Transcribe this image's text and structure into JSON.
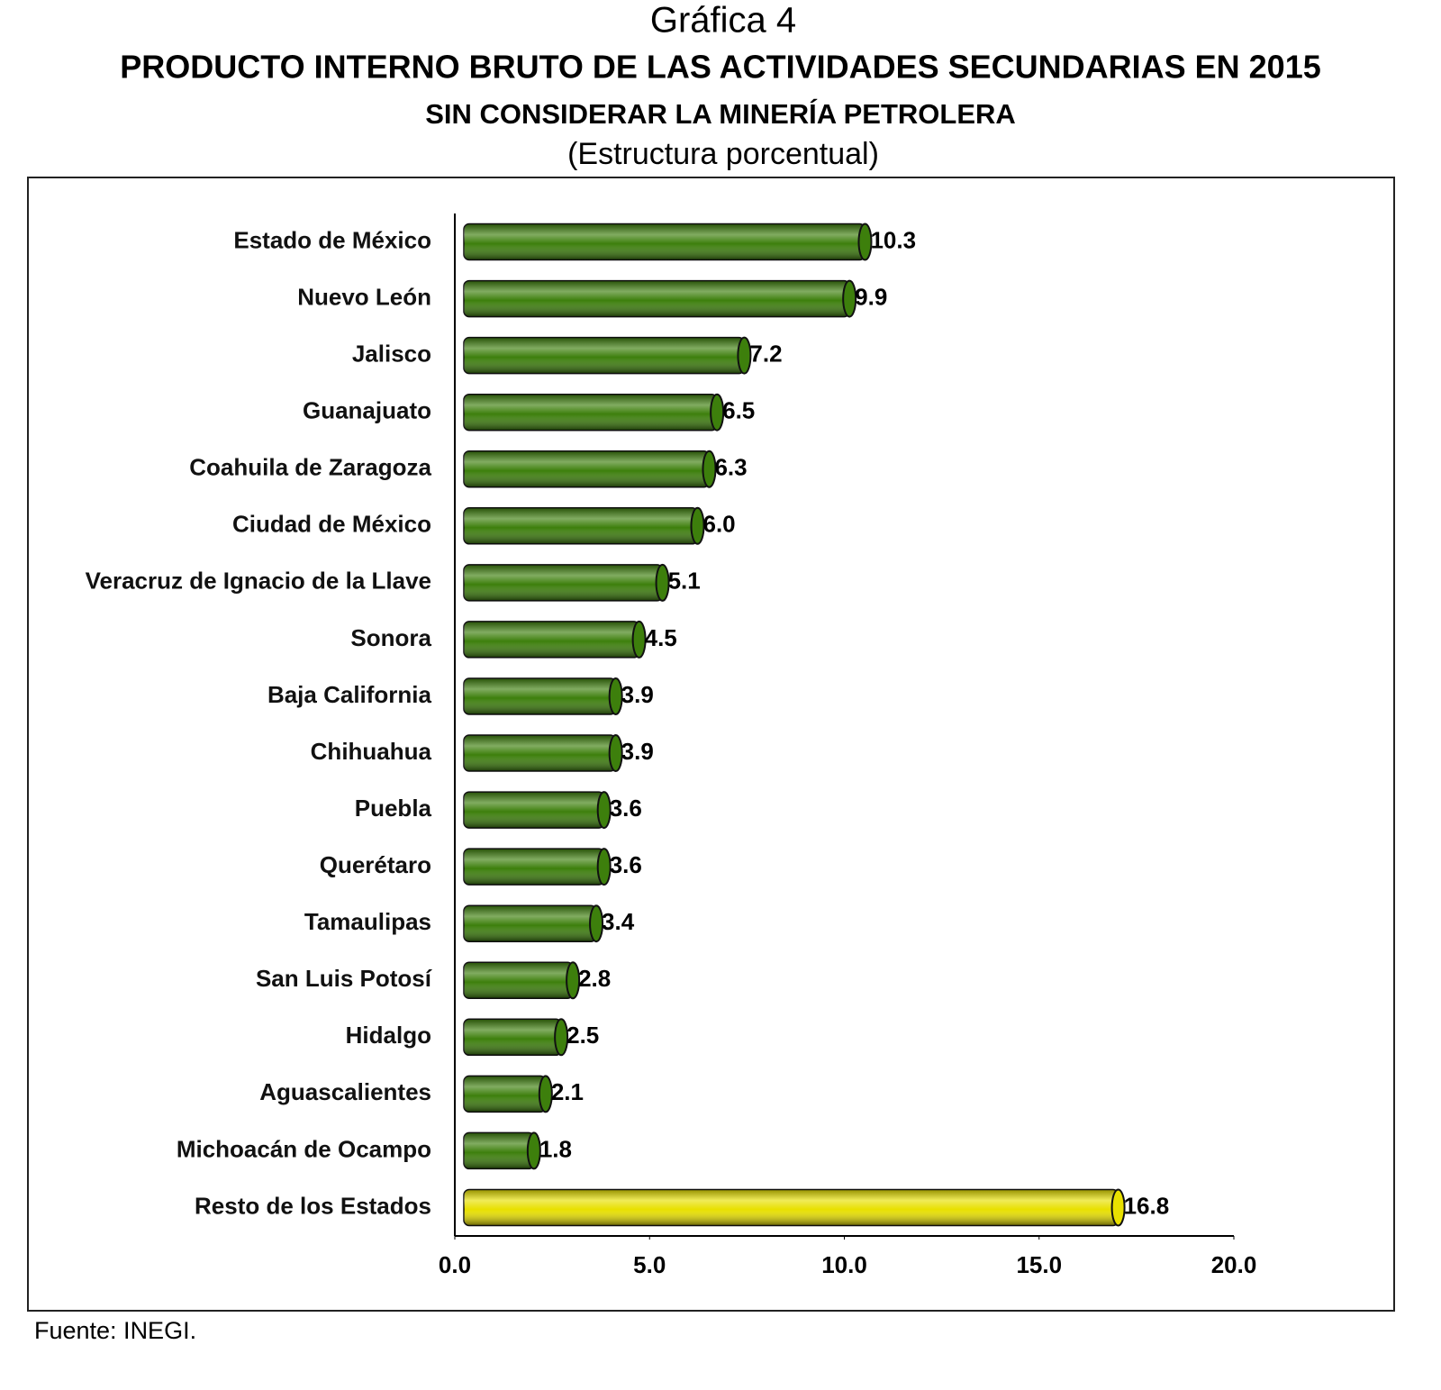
{
  "chart_data": {
    "type": "hbar",
    "title": "Gráfica 4",
    "subtitle": "PRODUCTO INTERNO BRUTO DE LAS ACTIVIDADES SECUNDARIAS EN 2015",
    "subtitle2": "SIN CONSIDERAR LA MINERÍA PETROLERA",
    "subtitle3": "(Estructura porcentual)",
    "source": "Fuente: INEGI.",
    "categories": [
      "Estado de México",
      "Nuevo León",
      "Jalisco",
      "Guanajuato",
      "Coahuila de Zaragoza",
      "Ciudad de México",
      "Veracruz de Ignacio de la Llave",
      "Sonora",
      "Baja California",
      "Chihuahua",
      "Puebla",
      "Querétaro",
      "Tamaulipas",
      "San Luis Potosí",
      "Hidalgo",
      "Aguascalientes",
      "Michoacán de Ocampo",
      "Resto de los Estados"
    ],
    "values": [
      10.3,
      9.9,
      7.2,
      6.5,
      6.3,
      6.0,
      5.1,
      4.5,
      3.9,
      3.9,
      3.6,
      3.6,
      3.4,
      2.8,
      2.5,
      2.1,
      1.8,
      16.8
    ],
    "value_labels": [
      "10.3",
      "9.9",
      "7.2",
      "6.5",
      "6.3",
      "6.0",
      "5.1",
      "4.5",
      "3.9",
      "3.9",
      "3.6",
      "3.6",
      "3.4",
      "2.8",
      "2.5",
      "2.1",
      "1.8",
      "16.8"
    ],
    "colors": [
      "#3d7f0c",
      "#3d7f0c",
      "#3d7f0c",
      "#3d7f0c",
      "#3d7f0c",
      "#3d7f0c",
      "#3d7f0c",
      "#3d7f0c",
      "#3d7f0c",
      "#3d7f0c",
      "#3d7f0c",
      "#3d7f0c",
      "#3d7f0c",
      "#3d7f0c",
      "#3d7f0c",
      "#3d7f0c",
      "#3d7f0c",
      "#e8e000"
    ],
    "xlim": [
      0,
      20
    ],
    "xticks": [
      {
        "value": 0,
        "label": "0.0"
      },
      {
        "value": 5,
        "label": "5.0"
      },
      {
        "value": 10,
        "label": "10.0"
      },
      {
        "value": 15,
        "label": "15.0"
      },
      {
        "value": 20,
        "label": "20.0"
      }
    ]
  }
}
